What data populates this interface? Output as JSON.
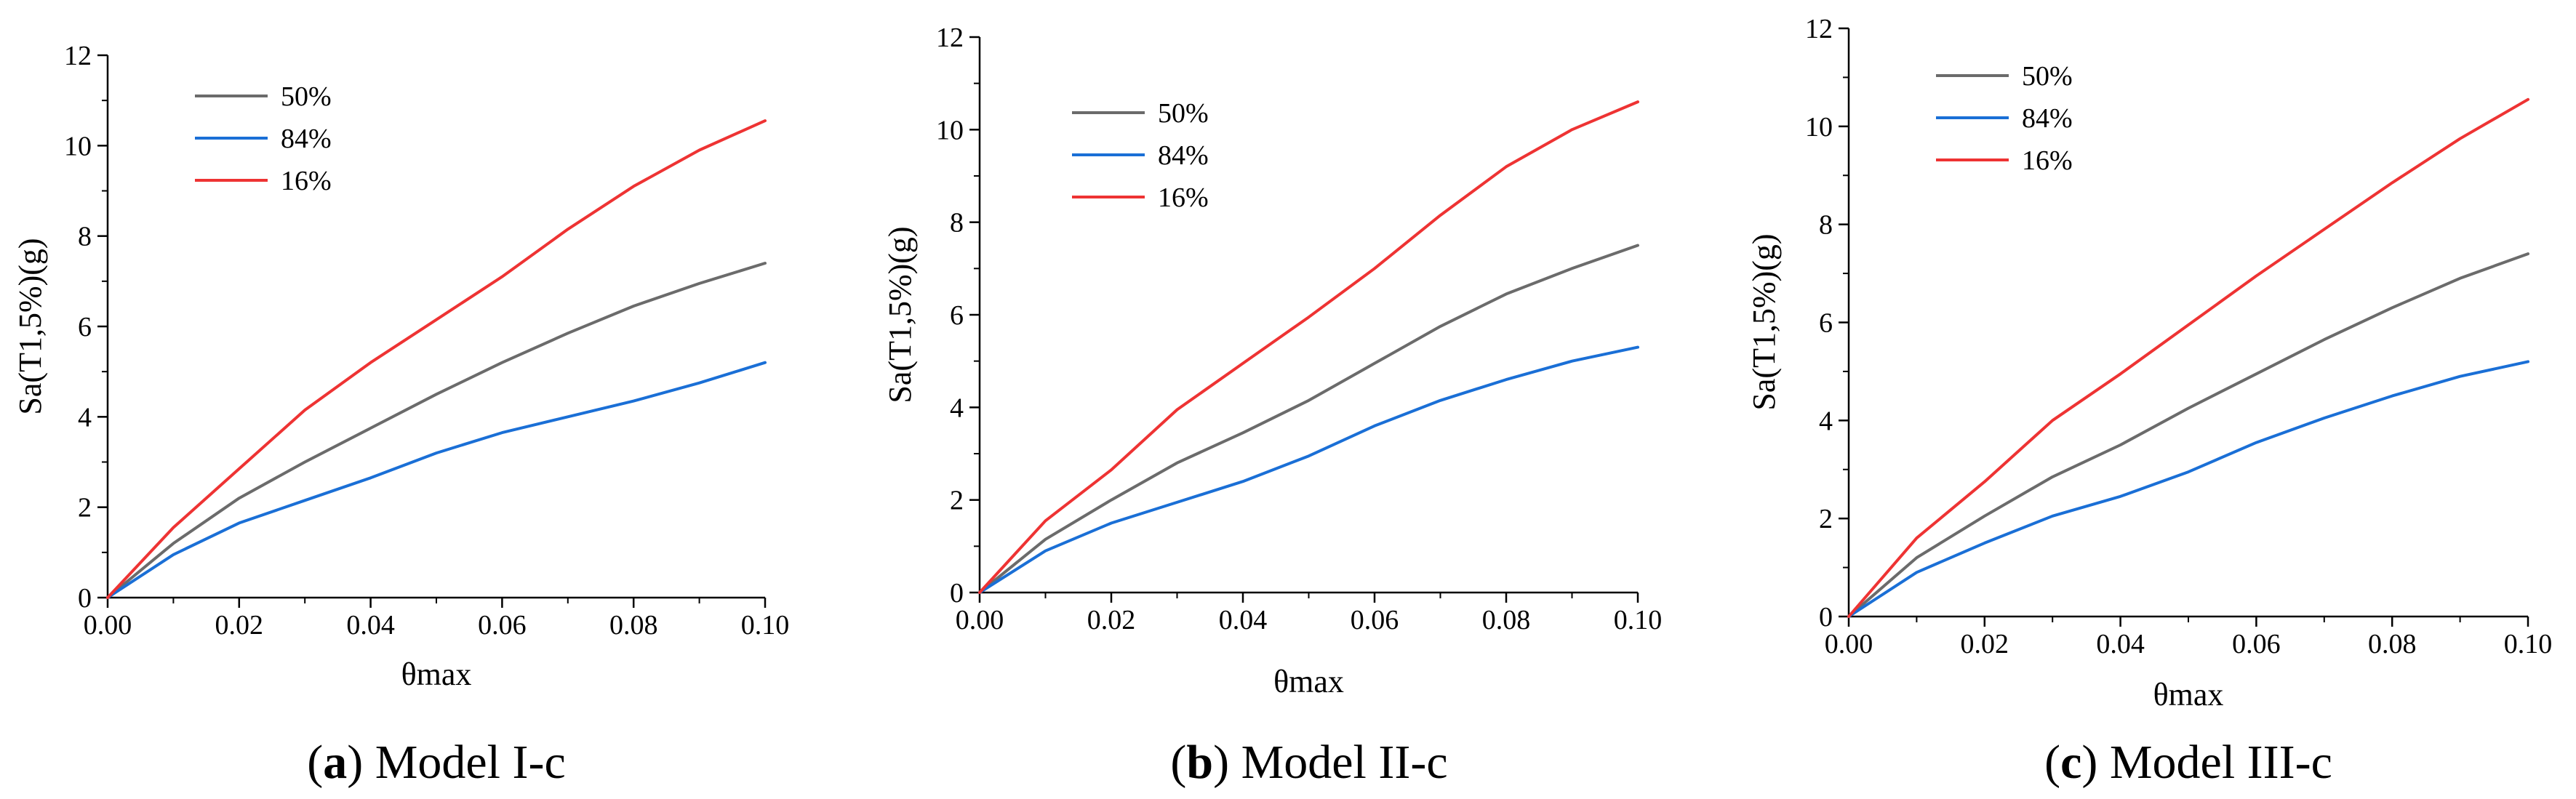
{
  "chart_data": [
    {
      "type": "line",
      "caption_letter": "a",
      "caption_title": "Model I-c",
      "xlabel": "θmax",
      "ylabel": "Sa(T1,5%)(g)",
      "xlim": [
        0,
        0.1
      ],
      "ylim": [
        0,
        12
      ],
      "xticks": [
        "0.00",
        "0.02",
        "0.04",
        "0.06",
        "0.08",
        "0.10"
      ],
      "yticks": [
        "0",
        "2",
        "4",
        "6",
        "8",
        "10",
        "12"
      ],
      "legend_position": "top-left",
      "series": [
        {
          "name": "50%",
          "color": "#6b6b6b",
          "x": [
            0,
            0.01,
            0.02,
            0.03,
            0.04,
            0.05,
            0.06,
            0.07,
            0.08,
            0.09,
            0.1
          ],
          "y": [
            0,
            1.2,
            2.2,
            3.0,
            3.75,
            4.5,
            5.2,
            5.85,
            6.45,
            6.95,
            7.4
          ]
        },
        {
          "name": "84%",
          "color": "#1a6fd6",
          "x": [
            0,
            0.01,
            0.02,
            0.03,
            0.04,
            0.05,
            0.06,
            0.07,
            0.08,
            0.09,
            0.1
          ],
          "y": [
            0,
            0.95,
            1.65,
            2.15,
            2.65,
            3.2,
            3.65,
            4.0,
            4.35,
            4.75,
            5.2
          ]
        },
        {
          "name": "16%",
          "color": "#ee3333",
          "x": [
            0,
            0.01,
            0.02,
            0.03,
            0.04,
            0.05,
            0.06,
            0.07,
            0.08,
            0.09,
            0.1
          ],
          "y": [
            0,
            1.55,
            2.85,
            4.15,
            5.2,
            6.15,
            7.1,
            8.15,
            9.1,
            9.9,
            10.55
          ]
        }
      ]
    },
    {
      "type": "line",
      "caption_letter": "b",
      "caption_title": "Model II-c",
      "xlabel": "θmax",
      "ylabel": "Sa(T1,5%)(g)",
      "xlim": [
        0,
        0.1
      ],
      "ylim": [
        0,
        12
      ],
      "xticks": [
        "0.00",
        "0.02",
        "0.04",
        "0.06",
        "0.08",
        "0.10"
      ],
      "yticks": [
        "0",
        "2",
        "4",
        "6",
        "8",
        "10",
        "12"
      ],
      "legend_position": "top-left",
      "series": [
        {
          "name": "50%",
          "color": "#6b6b6b",
          "x": [
            0,
            0.01,
            0.02,
            0.03,
            0.04,
            0.05,
            0.06,
            0.07,
            0.08,
            0.09,
            0.1
          ],
          "y": [
            0,
            1.15,
            2.0,
            2.8,
            3.45,
            4.15,
            4.95,
            5.75,
            6.45,
            7.0,
            7.5
          ]
        },
        {
          "name": "84%",
          "color": "#1a6fd6",
          "x": [
            0,
            0.01,
            0.02,
            0.03,
            0.04,
            0.05,
            0.06,
            0.07,
            0.08,
            0.09,
            0.1
          ],
          "y": [
            0,
            0.9,
            1.5,
            1.95,
            2.4,
            2.95,
            3.6,
            4.15,
            4.6,
            5.0,
            5.3
          ]
        },
        {
          "name": "16%",
          "color": "#ee3333",
          "x": [
            0,
            0.01,
            0.02,
            0.03,
            0.04,
            0.05,
            0.06,
            0.07,
            0.08,
            0.09,
            0.1
          ],
          "y": [
            0,
            1.55,
            2.65,
            3.95,
            4.95,
            5.95,
            7.0,
            8.15,
            9.2,
            10.0,
            10.6
          ]
        }
      ]
    },
    {
      "type": "line",
      "caption_letter": "c",
      "caption_title": "Model III-c",
      "xlabel": "θmax",
      "ylabel": "Sa(T1,5%)(g)",
      "xlim": [
        0,
        0.1
      ],
      "ylim": [
        0,
        12
      ],
      "xticks": [
        "0.00",
        "0.02",
        "0.04",
        "0.06",
        "0.08",
        "0.10"
      ],
      "yticks": [
        "0",
        "2",
        "4",
        "6",
        "8",
        "10",
        "12"
      ],
      "legend_position": "top-left",
      "series": [
        {
          "name": "50%",
          "color": "#6b6b6b",
          "x": [
            0,
            0.01,
            0.02,
            0.03,
            0.04,
            0.05,
            0.06,
            0.07,
            0.08,
            0.09,
            0.1
          ],
          "y": [
            0,
            1.2,
            2.05,
            2.85,
            3.5,
            4.25,
            4.95,
            5.65,
            6.3,
            6.9,
            7.4
          ]
        },
        {
          "name": "84%",
          "color": "#1a6fd6",
          "x": [
            0,
            0.01,
            0.02,
            0.03,
            0.04,
            0.05,
            0.06,
            0.07,
            0.08,
            0.09,
            0.1
          ],
          "y": [
            0,
            0.9,
            1.5,
            2.05,
            2.45,
            2.95,
            3.55,
            4.05,
            4.5,
            4.9,
            5.2
          ]
        },
        {
          "name": "16%",
          "color": "#ee3333",
          "x": [
            0,
            0.01,
            0.02,
            0.03,
            0.04,
            0.05,
            0.06,
            0.07,
            0.08,
            0.09,
            0.1
          ],
          "y": [
            0,
            1.6,
            2.75,
            4.0,
            4.95,
            5.95,
            6.95,
            7.9,
            8.85,
            9.75,
            10.55
          ]
        }
      ]
    }
  ]
}
